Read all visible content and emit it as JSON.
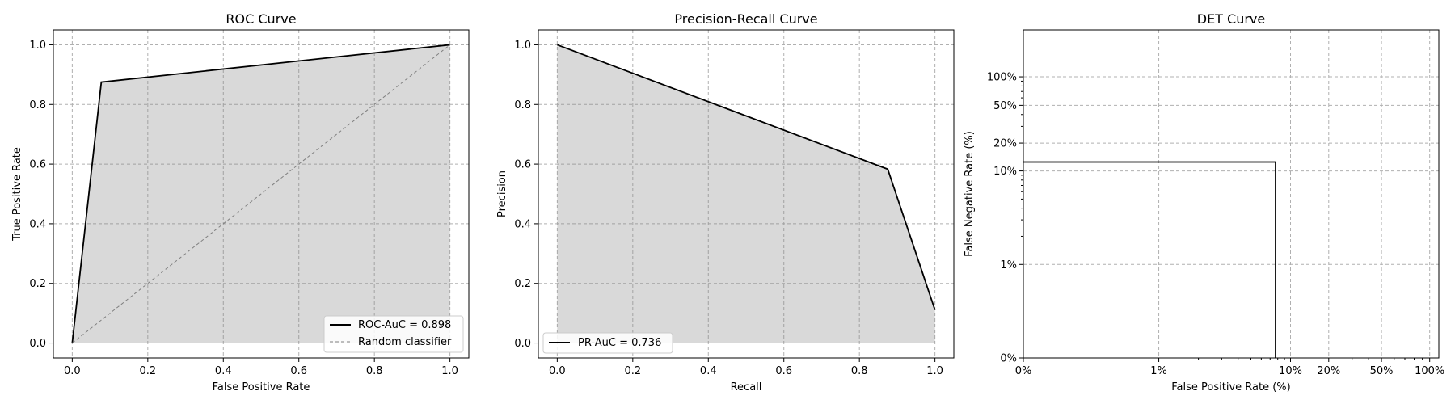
{
  "chart_data": [
    {
      "type": "line",
      "title": "ROC Curve",
      "xlabel": "False Positive Rate",
      "ylabel": "True Positive Rate",
      "xlim": [
        -0.05,
        1.05
      ],
      "ylim": [
        -0.05,
        1.05
      ],
      "xticks": [
        0.0,
        0.2,
        0.4,
        0.6,
        0.8,
        1.0
      ],
      "yticks": [
        0.0,
        0.2,
        0.4,
        0.6,
        0.8,
        1.0
      ],
      "tick_labels": [
        "0.0",
        "0.2",
        "0.4",
        "0.6",
        "0.8",
        "1.0"
      ],
      "grid": true,
      "legend_position": "lower-right",
      "series": [
        {
          "name": "ROC-AuC = 0.898",
          "x": [
            0.0,
            0.077,
            1.0
          ],
          "y": [
            0.0,
            0.875,
            1.0
          ],
          "style": "solid",
          "color": "#000000",
          "fill": true
        },
        {
          "name": "Random classifier",
          "x": [
            0.0,
            1.0
          ],
          "y": [
            0.0,
            1.0
          ],
          "style": "dashed",
          "color": "#808080",
          "fill": false
        }
      ]
    },
    {
      "type": "line",
      "title": "Precision-Recall Curve",
      "xlabel": "Recall",
      "ylabel": "Precision",
      "xlim": [
        -0.05,
        1.05
      ],
      "ylim": [
        -0.05,
        1.05
      ],
      "xticks": [
        0.0,
        0.2,
        0.4,
        0.6,
        0.8,
        1.0
      ],
      "yticks": [
        0.0,
        0.2,
        0.4,
        0.6,
        0.8,
        1.0
      ],
      "tick_labels": [
        "0.0",
        "0.2",
        "0.4",
        "0.6",
        "0.8",
        "1.0"
      ],
      "grid": true,
      "legend_position": "lower-left",
      "series": [
        {
          "name": "PR-AuC = 0.736",
          "x": [
            0.0,
            0.875,
            1.0
          ],
          "y": [
            1.0,
            0.583,
            0.111
          ],
          "style": "solid",
          "color": "#000000",
          "fill": true
        }
      ]
    },
    {
      "type": "line",
      "title": "DET Curve",
      "xlabel": "False Positive Rate (%)",
      "ylabel": "False Negative Rate (%)",
      "scale": "probit",
      "xlim": [
        0.0,
        100
      ],
      "ylim": [
        0.0,
        100
      ],
      "xticks": [
        0,
        1,
        10,
        20,
        50,
        100
      ],
      "xtick_labels": [
        "0%",
        "1%",
        "10%",
        "20%",
        "50%",
        "100%"
      ],
      "yticks": [
        0,
        1,
        10,
        20,
        50,
        100
      ],
      "ytick_labels": [
        "0%",
        "1%",
        "10%",
        "20%",
        "50%",
        "100%"
      ],
      "grid": true,
      "series": [
        {
          "x": [
            0,
            7.7,
            7.7
          ],
          "y": [
            12.5,
            12.5,
            0
          ],
          "style": "solid",
          "color": "#000000"
        }
      ]
    }
  ]
}
